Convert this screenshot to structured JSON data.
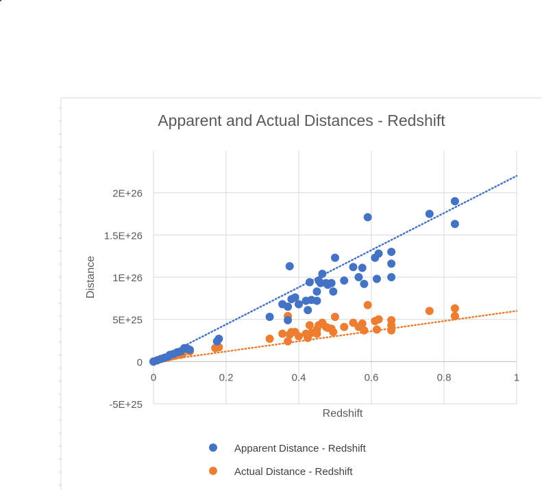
{
  "chart_data": {
    "type": "scatter",
    "title": "Apparent and Actual Distances - Redshift",
    "xlabel": "Redshift",
    "ylabel": "Distance",
    "xlim": [
      0,
      1
    ],
    "ylim": [
      -5e+25,
      2.5e+26
    ],
    "x_ticks": [
      0,
      0.2,
      0.4,
      0.6,
      0.8,
      1
    ],
    "x_tick_labels": [
      "0",
      "0.2",
      "0.4",
      "0.6",
      "0.8",
      "1"
    ],
    "y_ticks": [
      -5e+25,
      0,
      5e+25,
      1e+26,
      1.5e+26,
      2e+26
    ],
    "y_tick_labels": [
      "-5E+25",
      "0",
      "5E+25",
      "1E+26",
      "1.5E+26",
      "2E+26"
    ],
    "grid": true,
    "legend_position": "bottom",
    "series": [
      {
        "name": "Apparent Distance - Redshift",
        "color": "#4472c4",
        "trendline": {
          "type": "linear",
          "style": "dotted",
          "points": [
            [
              0,
              0
            ],
            [
              1,
              2.2e+26
            ]
          ]
        },
        "points": [
          [
            0,
            0
          ],
          [
            0.01,
            1.5e+24
          ],
          [
            0.02,
            3e+24
          ],
          [
            0.03,
            4.5e+24
          ],
          [
            0.04,
            6e+24
          ],
          [
            0.045,
            8e+24
          ],
          [
            0.055,
            9e+24
          ],
          [
            0.065,
            1.1e+25
          ],
          [
            0.075,
            1.2e+25
          ],
          [
            0.085,
            1.6e+25
          ],
          [
            0.095,
            1.5e+25
          ],
          [
            0.1,
            1.4e+25
          ],
          [
            0.175,
            2.4e+25
          ],
          [
            0.18,
            2.7e+25
          ],
          [
            0.32,
            5.3e+25
          ],
          [
            0.355,
            6.8e+25
          ],
          [
            0.37,
            4.9e+25
          ],
          [
            0.37,
            6.5e+25
          ],
          [
            0.375,
            1.13e+26
          ],
          [
            0.38,
            7.4e+25
          ],
          [
            0.39,
            7.6e+25
          ],
          [
            0.4,
            6.8e+25
          ],
          [
            0.42,
            7.2e+25
          ],
          [
            0.425,
            6.1e+25
          ],
          [
            0.43,
            9.4e+25
          ],
          [
            0.435,
            7.3e+25
          ],
          [
            0.45,
            7.2e+25
          ],
          [
            0.45,
            8.3e+25
          ],
          [
            0.455,
            9.6e+25
          ],
          [
            0.46,
            9.3e+25
          ],
          [
            0.465,
            1.04e+26
          ],
          [
            0.475,
            9.3e+25
          ],
          [
            0.48,
            9.1e+25
          ],
          [
            0.49,
            9.3e+25
          ],
          [
            0.495,
            8.3e+25
          ],
          [
            0.5,
            1.23e+26
          ],
          [
            0.525,
            9.6e+25
          ],
          [
            0.55,
            1.12e+26
          ],
          [
            0.565,
            1e+26
          ],
          [
            0.575,
            1.11e+26
          ],
          [
            0.58,
            9.2e+25
          ],
          [
            0.59,
            1.71e+26
          ],
          [
            0.61,
            1.23e+26
          ],
          [
            0.615,
            9.8e+25
          ],
          [
            0.62,
            1.28e+26
          ],
          [
            0.655,
            1.3e+26
          ],
          [
            0.655,
            1.16e+26
          ],
          [
            0.655,
            1e+26
          ],
          [
            0.76,
            1.75e+26
          ],
          [
            0.83,
            1.9e+26
          ],
          [
            0.83,
            1.63e+26
          ]
        ]
      },
      {
        "name": "Actual Distance - Redshift",
        "color": "#ed7d31",
        "trendline": {
          "type": "linear",
          "style": "dotted",
          "points": [
            [
              0,
              0
            ],
            [
              1,
              6e+25
            ]
          ]
        },
        "points": [
          [
            0,
            0
          ],
          [
            0.01,
            1.5e+24
          ],
          [
            0.02,
            3e+24
          ],
          [
            0.03,
            4e+24
          ],
          [
            0.04,
            5e+24
          ],
          [
            0.05,
            6e+24
          ],
          [
            0.06,
            7e+24
          ],
          [
            0.075,
            8e+24
          ],
          [
            0.08,
            9e+24
          ],
          [
            0.1,
            1.2e+25
          ],
          [
            0.17,
            1.6e+25
          ],
          [
            0.18,
            1.7e+25
          ],
          [
            0.32,
            2.7e+25
          ],
          [
            0.355,
            3.3e+25
          ],
          [
            0.37,
            2.4e+25
          ],
          [
            0.375,
            3.2e+25
          ],
          [
            0.37,
            5.4e+25
          ],
          [
            0.38,
            3.5e+25
          ],
          [
            0.39,
            3.5e+25
          ],
          [
            0.4,
            3e+25
          ],
          [
            0.42,
            3.3e+25
          ],
          [
            0.425,
            2.8e+25
          ],
          [
            0.43,
            4.3e+25
          ],
          [
            0.435,
            3.4e+25
          ],
          [
            0.45,
            3.3e+25
          ],
          [
            0.45,
            3.8e+25
          ],
          [
            0.455,
            4.3e+25
          ],
          [
            0.465,
            4.6e+25
          ],
          [
            0.475,
            4.1e+25
          ],
          [
            0.48,
            4e+25
          ],
          [
            0.49,
            3.9e+25
          ],
          [
            0.495,
            3.5e+25
          ],
          [
            0.5,
            5.3e+25
          ],
          [
            0.525,
            4.1e+25
          ],
          [
            0.55,
            4.6e+25
          ],
          [
            0.565,
            4.1e+25
          ],
          [
            0.575,
            4.5e+25
          ],
          [
            0.58,
            3.7e+25
          ],
          [
            0.59,
            6.7e+25
          ],
          [
            0.61,
            4.8e+25
          ],
          [
            0.615,
            3.8e+25
          ],
          [
            0.62,
            5e+25
          ],
          [
            0.655,
            4.9e+25
          ],
          [
            0.655,
            4.3e+25
          ],
          [
            0.655,
            3.7e+25
          ],
          [
            0.76,
            6e+25
          ],
          [
            0.83,
            6.3e+25
          ],
          [
            0.83,
            5.4e+25
          ]
        ]
      }
    ]
  }
}
